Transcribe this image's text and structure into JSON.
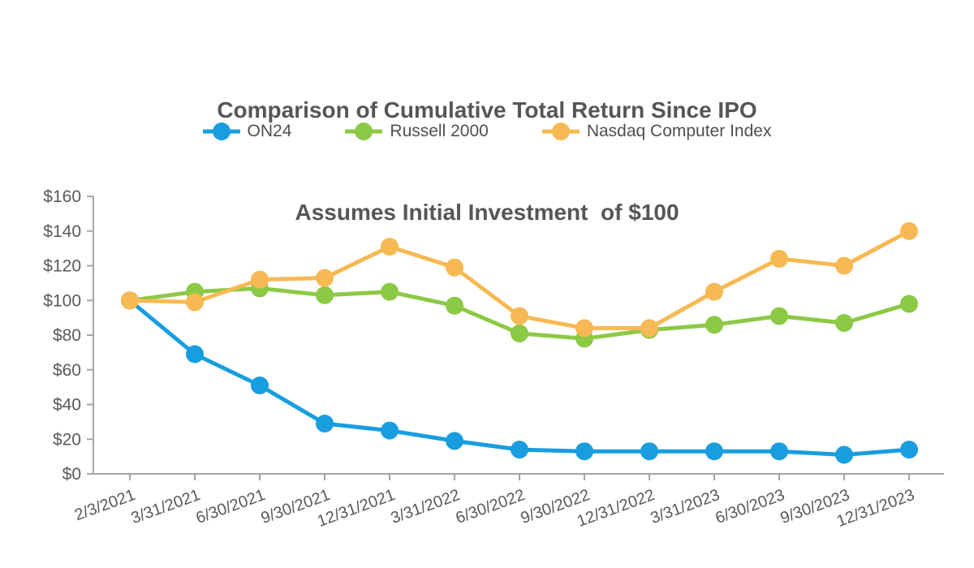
{
  "chart_data": {
    "type": "line",
    "title": "Comparison of Cumulative Total Return Since IPO",
    "subtitle": "Assumes Initial Investment  of $100",
    "categories": [
      "2/3/2021",
      "3/31/2021",
      "6/30/2021",
      "9/30/2021",
      "12/31/2021",
      "3/31/2022",
      "6/30/2022",
      "9/30/2022",
      "12/31/2022",
      "3/31/2023",
      "6/30/2023",
      "9/30/2023",
      "12/31/2023"
    ],
    "series": [
      {
        "name": "ON24",
        "color": "#189EE0",
        "values": [
          100,
          69,
          51,
          29,
          25,
          19,
          14,
          13,
          13,
          13,
          13,
          11,
          14
        ]
      },
      {
        "name": "Russell 2000",
        "color": "#8CC944",
        "values": [
          100,
          105,
          107,
          103,
          105,
          97,
          81,
          78,
          83,
          86,
          91,
          87,
          98
        ]
      },
      {
        "name": "Nasdaq Computer Index",
        "color": "#F7B953",
        "values": [
          100,
          99,
          112,
          113,
          131,
          119,
          91,
          84,
          84,
          105,
          124,
          120,
          140
        ]
      }
    ],
    "ylim": [
      0,
      160
    ],
    "y_tick_step": 20,
    "y_tick_labels": [
      "$0",
      "$20",
      "$40",
      "$60",
      "$80",
      "$100",
      "$120",
      "$140",
      "$160"
    ],
    "xlabel": "",
    "ylabel": "",
    "grid": false,
    "legend_position": "top",
    "marker_style": "circle",
    "axis_color": "#A6A6A6",
    "text_color": "#595959"
  }
}
